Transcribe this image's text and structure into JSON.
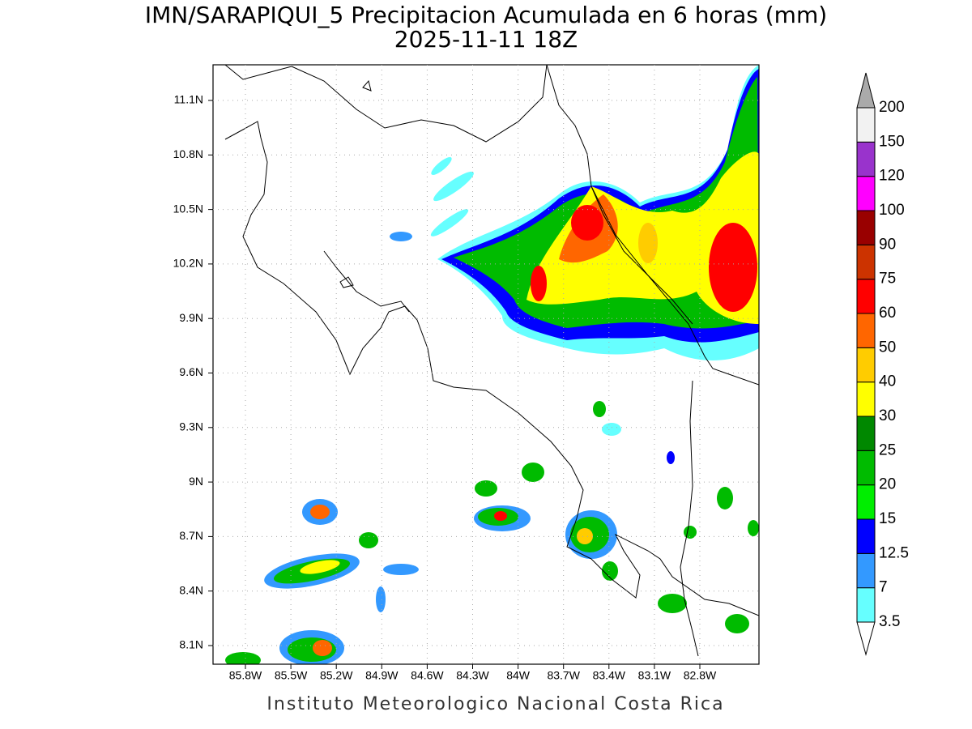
{
  "header": {
    "title": "IMN/SARAPIQUI_5 Precipitacion Acumulada en 6 horas (mm)",
    "subtitle": "2025-11-11 18Z"
  },
  "map": {
    "lat_labels": [
      "11.1N",
      "10.8N",
      "10.5N",
      "10.2N",
      "9.9N",
      "9.6N",
      "9.3N",
      "9N",
      "8.7N",
      "8.4N",
      "8.1N"
    ],
    "lon_labels": [
      "85.8W",
      "85.5W",
      "85.2W",
      "84.9W",
      "84.6W",
      "84.3W",
      "84W",
      "83.7W",
      "83.4W",
      "83.1W",
      "82.8W"
    ]
  },
  "colorbar": {
    "labels": [
      "3.5",
      "7",
      "12.5",
      "15",
      "20",
      "25",
      "30",
      "40",
      "50",
      "60",
      "75",
      "90",
      "100",
      "120",
      "150",
      "200"
    ],
    "colors": [
      "#66ffff",
      "#3399ff",
      "#0000ff",
      "#00ee00",
      "#00bb00",
      "#008800",
      "#ffff00",
      "#ffcc00",
      "#ff6600",
      "#ff0000",
      "#cc3300",
      "#990000",
      "#ff00ff",
      "#9933cc",
      "#f2f2f2"
    ],
    "below_color": "#ffffff",
    "above_color": "#aaaaaa"
  },
  "footer": "Instituto Meteorologico Nacional Costa Rica"
}
